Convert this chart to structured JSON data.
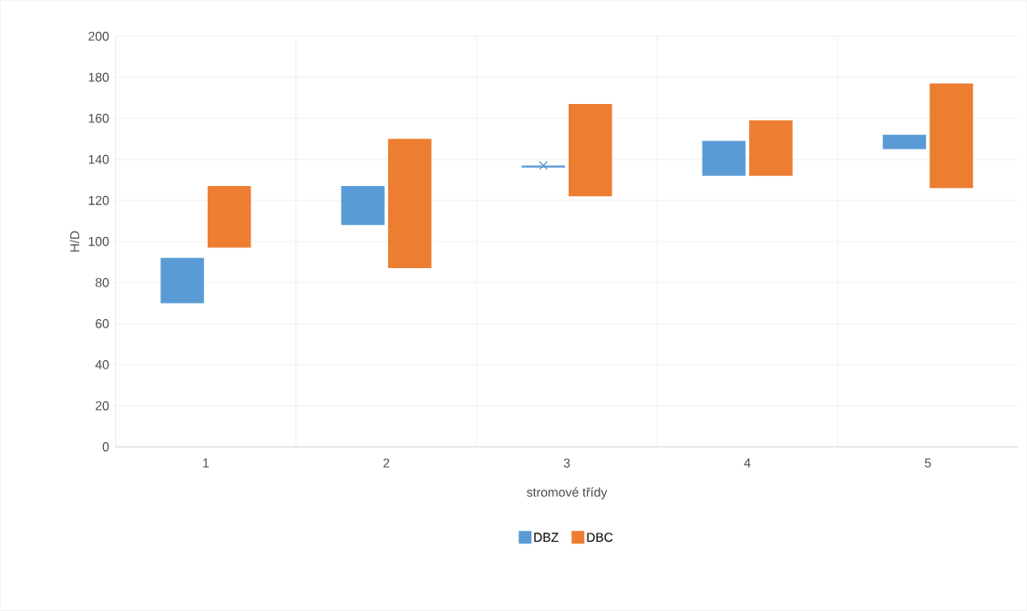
{
  "chart_data": {
    "type": "bar",
    "xlabel": "stromové třídy",
    "ylabel": "H/D",
    "categories": [
      "1",
      "2",
      "3",
      "4",
      "5"
    ],
    "series": [
      {
        "name": "DBZ",
        "color": "#5b9bd5",
        "base": [
          70,
          108,
          136,
          132,
          145
        ],
        "values": [
          22,
          19,
          1,
          17,
          7
        ]
      },
      {
        "name": "DBC",
        "color": "#ed7d31",
        "base": [
          97,
          87,
          122,
          132,
          126
        ],
        "values": [
          30,
          63,
          45,
          27,
          51
        ]
      },
      {
        "type": "scatter",
        "color": "#5b9bd5",
        "marker": "cross",
        "x": [
          "3"
        ],
        "values": [
          137
        ]
      }
    ],
    "ylim": [
      0,
      200
    ],
    "yticks": [
      0,
      20,
      40,
      60,
      80,
      100,
      120,
      140,
      160,
      180,
      200
    ],
    "grid": true,
    "legend": "bottom"
  }
}
